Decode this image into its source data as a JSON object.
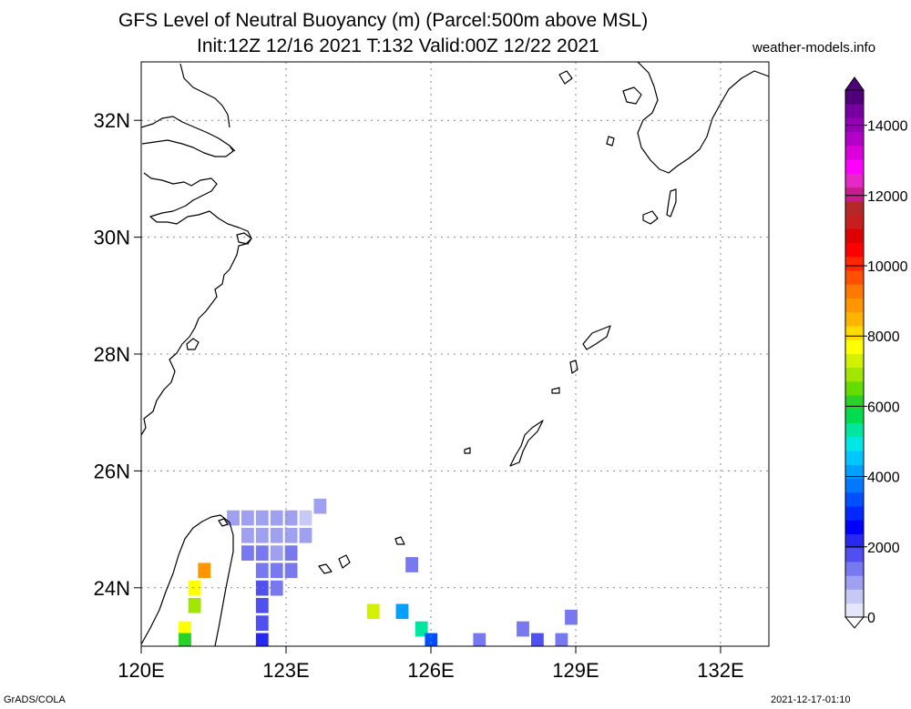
{
  "header": {
    "title_line1": "GFS Level of Neutral Buoyancy (m) (Parcel:500m above MSL)",
    "title_line2": "Init:12Z 12/16 2021 T:132 Valid:00Z 12/22 2021",
    "site": "weather-models.info"
  },
  "footer": {
    "left": "GrADS/COLA",
    "right": "2021-12-17-01:10"
  },
  "map": {
    "lon_range": [
      120,
      133
    ],
    "lat_range": [
      23,
      33
    ],
    "lon_ticks": [
      {
        "value": 120,
        "label": "120E"
      },
      {
        "value": 123,
        "label": "123E"
      },
      {
        "value": 126,
        "label": "126E"
      },
      {
        "value": 129,
        "label": "129E"
      },
      {
        "value": 132,
        "label": "132E"
      }
    ],
    "lat_ticks": [
      {
        "value": 24,
        "label": "24N"
      },
      {
        "value": 26,
        "label": "26N"
      },
      {
        "value": 28,
        "label": "28N"
      },
      {
        "value": 30,
        "label": "30N"
      },
      {
        "value": 32,
        "label": "32N"
      }
    ],
    "gridlines": true,
    "coastline_color": "#000000"
  },
  "colorbar": {
    "unit": "m",
    "labels": [
      {
        "value": 0,
        "label": "0"
      },
      {
        "value": 2000,
        "label": "2000"
      },
      {
        "value": 4000,
        "label": "4000"
      },
      {
        "value": 6000,
        "label": "6000"
      },
      {
        "value": 8000,
        "label": "8000"
      },
      {
        "value": 10000,
        "label": "10000"
      },
      {
        "value": 12000,
        "label": "12000"
      },
      {
        "value": 14000,
        "label": "14000"
      }
    ],
    "colors": [
      "#e6e6fa",
      "#c8c8f5",
      "#a0a0f0",
      "#7878f0",
      "#5050f0",
      "#2828f0",
      "#0000ff",
      "#0028ff",
      "#0050ff",
      "#0078ff",
      "#00a0ff",
      "#00c8ff",
      "#00e6e6",
      "#00e6a0",
      "#00dc50",
      "#28d228",
      "#64dc00",
      "#a0e600",
      "#d2f000",
      "#ffff00",
      "#ffdc00",
      "#ffb400",
      "#ff9600",
      "#ff7800",
      "#ff5000",
      "#ff2800",
      "#ff0000",
      "#dc0000",
      "#c81e1e",
      "#b42828",
      "#c81e8c",
      "#e628c8",
      "#ff00ff",
      "#dc00dc",
      "#b400c8",
      "#9600b4",
      "#7800a0",
      "#500078"
    ]
  },
  "chart_data": {
    "type": "heatmap",
    "variable": "Level of Neutral Buoyancy",
    "units": "m",
    "grid_step_deg": 0.25,
    "cells": [
      {
        "lon": 121.9,
        "lat": 25.2,
        "value": 900
      },
      {
        "lon": 122.2,
        "lat": 25.2,
        "value": 900
      },
      {
        "lon": 122.5,
        "lat": 25.2,
        "value": 800
      },
      {
        "lon": 122.8,
        "lat": 25.2,
        "value": 900
      },
      {
        "lon": 123.1,
        "lat": 25.2,
        "value": 800
      },
      {
        "lon": 123.4,
        "lat": 25.2,
        "value": 700
      },
      {
        "lon": 123.7,
        "lat": 25.4,
        "value": 900
      },
      {
        "lon": 122.2,
        "lat": 24.9,
        "value": 1100
      },
      {
        "lon": 122.5,
        "lat": 24.9,
        "value": 1000
      },
      {
        "lon": 122.8,
        "lat": 24.9,
        "value": 900
      },
      {
        "lon": 123.1,
        "lat": 24.9,
        "value": 1000
      },
      {
        "lon": 123.4,
        "lat": 24.9,
        "value": 800
      },
      {
        "lon": 122.2,
        "lat": 24.6,
        "value": 1200
      },
      {
        "lon": 122.5,
        "lat": 24.6,
        "value": 1300
      },
      {
        "lon": 122.8,
        "lat": 24.6,
        "value": 1100
      },
      {
        "lon": 123.1,
        "lat": 24.6,
        "value": 1200
      },
      {
        "lon": 122.5,
        "lat": 24.3,
        "value": 1400
      },
      {
        "lon": 122.8,
        "lat": 24.3,
        "value": 1300
      },
      {
        "lon": 123.1,
        "lat": 24.3,
        "value": 1500
      },
      {
        "lon": 122.5,
        "lat": 24.0,
        "value": 1600
      },
      {
        "lon": 122.8,
        "lat": 24.0,
        "value": 1400
      },
      {
        "lon": 122.5,
        "lat": 23.7,
        "value": 1700
      },
      {
        "lon": 122.5,
        "lat": 23.4,
        "value": 1800
      },
      {
        "lon": 122.5,
        "lat": 23.1,
        "value": 2000
      },
      {
        "lon": 121.3,
        "lat": 24.3,
        "value": 9000
      },
      {
        "lon": 121.1,
        "lat": 24.0,
        "value": 7800
      },
      {
        "lon": 121.1,
        "lat": 23.7,
        "value": 6800
      },
      {
        "lon": 120.9,
        "lat": 23.3,
        "value": 7800
      },
      {
        "lon": 120.9,
        "lat": 23.1,
        "value": 6200
      },
      {
        "lon": 124.8,
        "lat": 23.6,
        "value": 7200
      },
      {
        "lon": 125.4,
        "lat": 23.6,
        "value": 4200
      },
      {
        "lon": 125.6,
        "lat": 24.4,
        "value": 1200
      },
      {
        "lon": 125.8,
        "lat": 23.3,
        "value": 5200
      },
      {
        "lon": 126.0,
        "lat": 23.1,
        "value": 3200
      },
      {
        "lon": 127.0,
        "lat": 23.1,
        "value": 1500
      },
      {
        "lon": 127.9,
        "lat": 23.3,
        "value": 1400
      },
      {
        "lon": 128.2,
        "lat": 23.1,
        "value": 1600
      },
      {
        "lon": 128.7,
        "lat": 23.1,
        "value": 1500
      },
      {
        "lon": 128.9,
        "lat": 23.5,
        "value": 1500
      }
    ]
  }
}
